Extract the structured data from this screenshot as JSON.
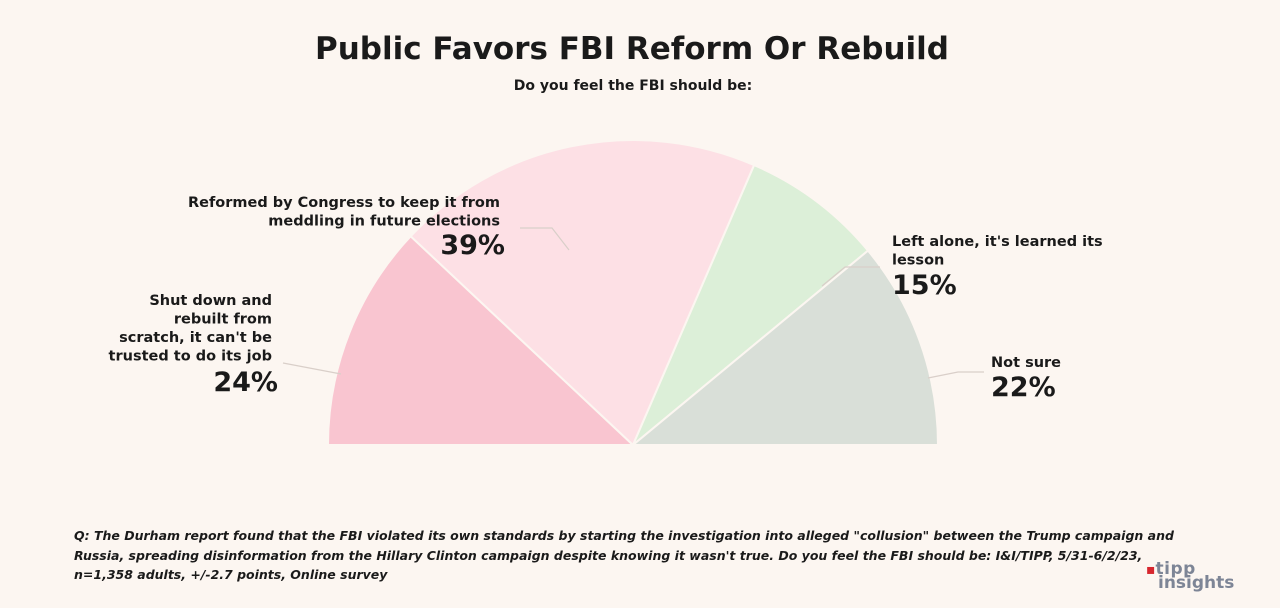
{
  "chart_data": {
    "type": "pie",
    "subtype": "half-donut (semicircle)",
    "title": "Public Favors FBI Reform Or Rebuild",
    "subtitle": "Do you feel the FBI should be:",
    "slices": [
      {
        "label": "Shut down and rebuilt from scratch, it can't be trusted to do its job",
        "label_lines": [
          "Shut down and",
          "rebuilt from",
          "scratch, it can't be",
          "trusted to do its job"
        ],
        "value": 24,
        "display": "24%",
        "color": "#f9c5d0"
      },
      {
        "label": "Reformed by Congress to keep it from meddling in future elections",
        "label_lines": [
          "Reformed by Congress to keep it from",
          "meddling in future elections"
        ],
        "value": 39,
        "display": "39%",
        "color": "#fde0e5"
      },
      {
        "label": "Left alone, it's learned its lesson",
        "label_lines": [
          "Left alone, it's learned its",
          "lesson"
        ],
        "value": 15,
        "display": "15%",
        "color": "#dcefd8"
      },
      {
        "label": "Not sure",
        "label_lines": [
          "Not sure"
        ],
        "value": 22,
        "display": "22%",
        "color": "#d9dfd8"
      }
    ]
  },
  "footnote": "Q: The Durham report found that the FBI violated its own standards by starting the investigation into alleged \"collusion\" between the Trump campaign and Russia, spreading disinformation from the Hillary Clinton campaign despite knowing it wasn't true. Do you feel the FBI should be: I&I/TIPP, 5/31-6/2/23, n=1,358 adults, +/-2.7 points, Online survey",
  "logo": {
    "mark": "▪",
    "line1": "tipp",
    "line2": "insights"
  }
}
